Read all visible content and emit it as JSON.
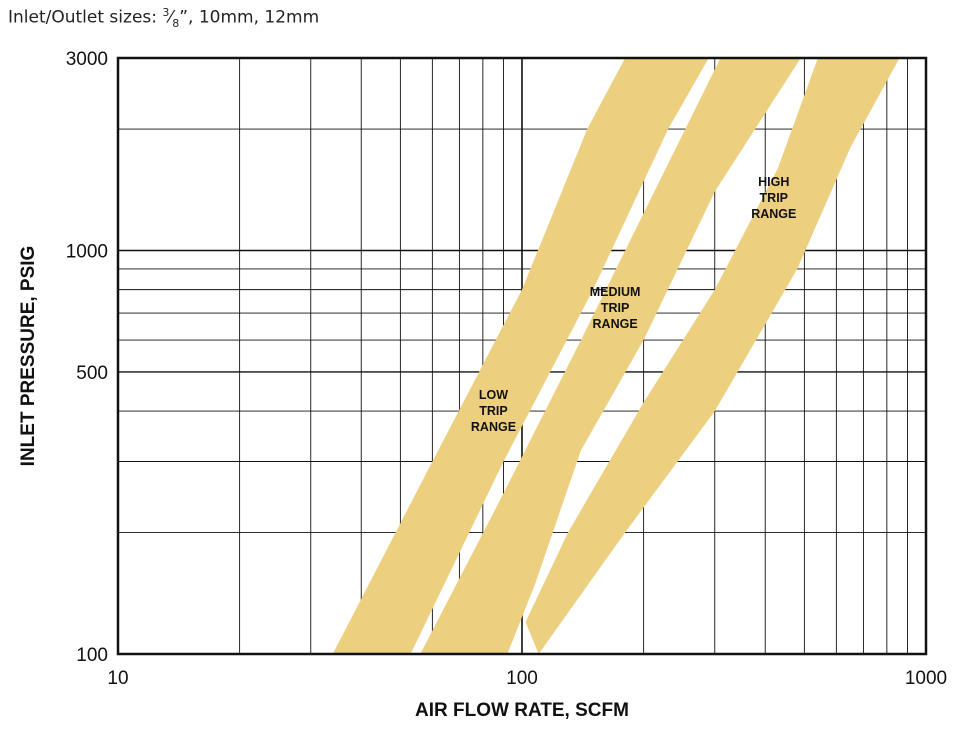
{
  "header": {
    "subtitle_prefix": "Inlet/Outlet sizes: ",
    "fraction_num": "3",
    "fraction_den": "8",
    "subtitle_suffix": "”, 10mm, 12mm"
  },
  "chart_data": {
    "type": "area",
    "title": "",
    "subtitle": "Inlet/Outlet sizes: 3/8”, 10mm, 12mm",
    "xlabel": "AIR FLOW RATE, SCFM",
    "ylabel": "INLET PRESSURE, PSIG",
    "x_scale": "log",
    "y_scale": "log",
    "xlim": [
      10,
      1000
    ],
    "ylim": [
      100,
      3000
    ],
    "x_ticks": [
      "10",
      "100",
      "1000"
    ],
    "y_ticks": [
      "3000",
      "1000",
      "500",
      "100"
    ],
    "grid": true,
    "band_color": "#ecd07f",
    "series": [
      {
        "name": "LOW TRIP RANGE",
        "label_lines": [
          "LOW",
          "TRIP",
          "RANGE"
        ],
        "label_at": [
          85,
          400
        ],
        "left_edge": [
          [
            34,
            100
          ],
          [
            60,
            300
          ],
          [
            100,
            800
          ],
          [
            145,
            2000
          ],
          [
            180,
            3000
          ]
        ],
        "right_edge": [
          [
            53,
            100
          ],
          [
            90,
            300
          ],
          [
            150,
            800
          ],
          [
            230,
            2000
          ],
          [
            290,
            3000
          ]
        ]
      },
      {
        "name": "MEDIUM TRIP RANGE",
        "label_lines": [
          "MEDIUM",
          "TRIP",
          "RANGE"
        ],
        "label_at": [
          170,
          720
        ],
        "left_edge": [
          [
            56,
            100
          ],
          [
            90,
            250
          ],
          [
            140,
            600
          ],
          [
            220,
            1500
          ],
          [
            310,
            3000
          ]
        ],
        "right_edge": [
          [
            92,
            100
          ],
          [
            108,
            150
          ],
          [
            140,
            320
          ],
          [
            200,
            600
          ],
          [
            300,
            1400
          ],
          [
            490,
            3000
          ]
        ]
      },
      {
        "name": "HIGH TRIP RANGE",
        "label_lines": [
          "HIGH",
          "TRIP",
          "RANGE"
        ],
        "label_at": [
          420,
          1350
        ],
        "left_edge": [
          [
            102,
            120
          ],
          [
            130,
            200
          ],
          [
            200,
            420
          ],
          [
            300,
            800
          ],
          [
            430,
            1600
          ],
          [
            540,
            3000
          ]
        ],
        "right_edge": [
          [
            110,
            100
          ],
          [
            180,
            200
          ],
          [
            300,
            400
          ],
          [
            480,
            900
          ],
          [
            650,
            1800
          ],
          [
            860,
            3000
          ]
        ]
      }
    ]
  }
}
